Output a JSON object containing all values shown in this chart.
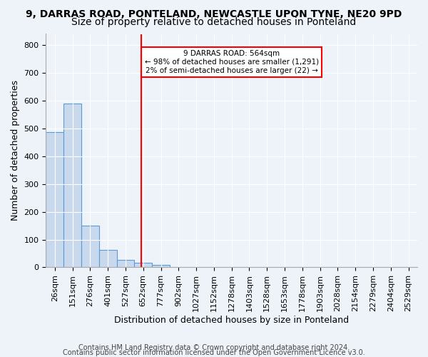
{
  "title1": "9, DARRAS ROAD, PONTELAND, NEWCASTLE UPON TYNE, NE20 9PD",
  "title2": "Size of property relative to detached houses in Ponteland",
  "xlabel": "Distribution of detached houses by size in Ponteland",
  "ylabel": "Number of detached properties",
  "bar_labels": [
    "26sqm",
    "151sqm",
    "276sqm",
    "401sqm",
    "527sqm",
    "652sqm",
    "777sqm",
    "902sqm",
    "1027sqm",
    "1152sqm",
    "1278sqm",
    "1403sqm",
    "1528sqm",
    "1653sqm",
    "1778sqm",
    "1903sqm",
    "2028sqm",
    "2154sqm",
    "2279sqm",
    "2404sqm",
    "2529sqm"
  ],
  "bar_heights": [
    487,
    590,
    150,
    63,
    27,
    17,
    8,
    0,
    0,
    0,
    0,
    0,
    0,
    0,
    0,
    0,
    0,
    0,
    0,
    0,
    0
  ],
  "bar_color": "#c8d9ed",
  "bar_edgecolor": "#5b9bd5",
  "property_line_x": 5.38,
  "property_line_color": "red",
  "annotation_text": "9 DARRAS ROAD: 564sqm\n← 98% of detached houses are smaller (1,291)\n2% of semi-detached houses are larger (22) →",
  "annotation_box_color": "white",
  "annotation_box_edgecolor": "red",
  "ylim": [
    0,
    840
  ],
  "yticks": [
    0,
    100,
    200,
    300,
    400,
    500,
    600,
    700,
    800
  ],
  "footer1": "Contains HM Land Registry data © Crown copyright and database right 2024.",
  "footer2": "Contains public sector information licensed under the Open Government Licence v3.0.",
  "bg_color": "#eef3f9",
  "plot_bg_color": "#eef3f9",
  "title1_fontsize": 10,
  "title2_fontsize": 10,
  "xlabel_fontsize": 9,
  "ylabel_fontsize": 9,
  "tick_fontsize": 8,
  "footer_fontsize": 7
}
